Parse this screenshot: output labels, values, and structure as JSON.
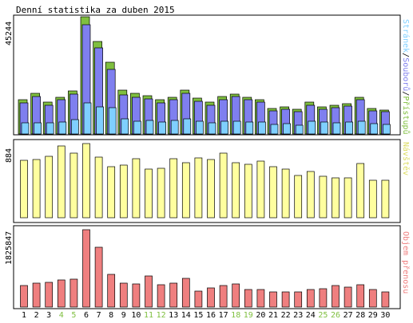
{
  "title": "Denní statistika za duben 2015",
  "chart_data": [
    {
      "type": "bar",
      "panel": "top",
      "categories": [
        "1",
        "2",
        "3",
        "4",
        "5",
        "6",
        "7",
        "8",
        "9",
        "10",
        "11",
        "12",
        "13",
        "14",
        "15",
        "16",
        "17",
        "18",
        "19",
        "20",
        "21",
        "22",
        "23",
        "24",
        "25",
        "26",
        "27",
        "28",
        "29",
        "30"
      ],
      "weekend_days": [
        "4",
        "5",
        "11",
        "12",
        "18",
        "19",
        "25",
        "26"
      ],
      "ymax_label": "45244",
      "ylim": [
        0,
        45244
      ],
      "right_label": {
        "parts": [
          "Stránek",
          "/",
          "Souborů",
          "/",
          "Přístupů"
        ]
      },
      "series": [
        {
          "name": "Přístupů",
          "color": "#7fbf3f",
          "values": [
            13300,
            15700,
            12200,
            14300,
            16700,
            45244,
            35600,
            27700,
            16800,
            15600,
            14900,
            13200,
            14300,
            16800,
            13700,
            12400,
            14500,
            15500,
            14300,
            13200,
            9700,
            10400,
            9500,
            12300,
            10600,
            11100,
            11700,
            14300,
            9700,
            9300
          ]
        },
        {
          "name": "Souborů",
          "color": "#7f7fef",
          "values": [
            11900,
            14400,
            11000,
            13100,
            15500,
            42300,
            33300,
            25000,
            15200,
            14300,
            13500,
            12100,
            13100,
            15600,
            12600,
            11100,
            13300,
            14400,
            13200,
            12200,
            8800,
            9500,
            8600,
            11100,
            9600,
            10100,
            10700,
            13200,
            8900,
            8500
          ]
        },
        {
          "name": "Stránek",
          "color": "#7fcfff",
          "values": [
            4200,
            4400,
            4300,
            4600,
            5500,
            12000,
            10600,
            10300,
            5800,
            4900,
            5200,
            4700,
            5200,
            5900,
            4900,
            4200,
            4800,
            5000,
            4700,
            4500,
            3800,
            3900,
            3500,
            4800,
            4600,
            4400,
            4600,
            4800,
            3900,
            3700
          ]
        }
      ]
    },
    {
      "type": "bar",
      "panel": "middle",
      "categories": [
        "1",
        "2",
        "3",
        "4",
        "5",
        "6",
        "7",
        "8",
        "9",
        "10",
        "11",
        "12",
        "13",
        "14",
        "15",
        "16",
        "17",
        "18",
        "19",
        "20",
        "21",
        "22",
        "23",
        "24",
        "25",
        "26",
        "27",
        "28",
        "29",
        "30"
      ],
      "ymax_label": "884",
      "ylim": [
        0,
        884
      ],
      "right_label": {
        "parts": [
          "Návštěv"
        ]
      },
      "series": [
        {
          "name": "Návštěv",
          "color": "#ffff9f",
          "values": [
            683,
            698,
            728,
            854,
            770,
            884,
            722,
            611,
            623,
            703,
            578,
            590,
            705,
            653,
            713,
            694,
            769,
            656,
            637,
            676,
            605,
            584,
            505,
            556,
            495,
            471,
            480,
            646,
            448,
            451
          ]
        }
      ]
    },
    {
      "type": "bar",
      "panel": "bottom",
      "categories": [
        "1",
        "2",
        "3",
        "4",
        "5",
        "6",
        "7",
        "8",
        "9",
        "10",
        "11",
        "12",
        "13",
        "14",
        "15",
        "16",
        "17",
        "18",
        "19",
        "20",
        "21",
        "22",
        "23",
        "24",
        "25",
        "26",
        "27",
        "28",
        "29",
        "30"
      ],
      "ymax_label": "1825847",
      "ylim": [
        0,
        1825847
      ],
      "right_label": {
        "parts": [
          "Objem přenosu"
        ]
      },
      "series": [
        {
          "name": "Objem přenosu",
          "color": "#ef7f7f",
          "values": [
            516000,
            573000,
            583000,
            637000,
            652000,
            1825847,
            1403000,
            767000,
            558000,
            555000,
            735000,
            531000,
            574000,
            669000,
            381000,
            445000,
            510000,
            555000,
            412000,
            420000,
            349000,
            352000,
            353000,
            409000,
            428000,
            501000,
            474000,
            528000,
            412000,
            357000
          ]
        }
      ]
    }
  ],
  "colors": {
    "panel_border": "#000000",
    "weekday_label": "#000000",
    "weekend_label": "#7fbf3f",
    "separator": "#000000"
  }
}
